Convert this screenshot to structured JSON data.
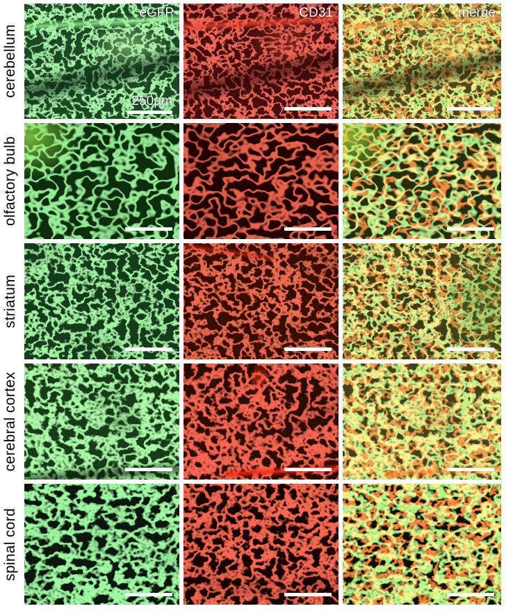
{
  "figure": {
    "column_labels": [
      "eGFP",
      "CD31",
      "merge"
    ],
    "row_labels": [
      "cerebellum",
      "olfactory bulb",
      "striatum",
      "cerebral cortex",
      "spinal cord"
    ],
    "scale_bar_label": "250µm",
    "channel_colors": {
      "eGFP": "#41d148",
      "CD31": "#d81c10",
      "merge_overlap": "#d8c531"
    },
    "text_colors": {
      "row_labels": "#000000",
      "panel_labels": "#ffffff",
      "scale_bars": "#ffffff"
    },
    "page_background": "#ffffff"
  }
}
